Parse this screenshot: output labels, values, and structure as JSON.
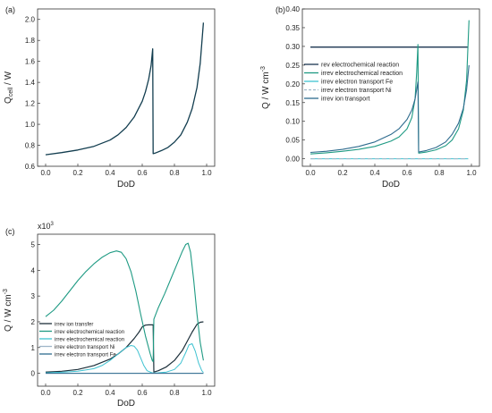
{
  "chart_data": [
    {
      "type": "line",
      "panel_label": "(a)",
      "xlabel": "DoD",
      "ylabel": "Q_cell / W",
      "ylabel_main": "Q",
      "ylabel_sub": "cell",
      "ylabel_unit": " / W",
      "xlim": [
        -0.05,
        1.05
      ],
      "ylim": [
        0.6,
        2.1
      ],
      "xticks": [
        "0.0",
        "0.2",
        "0.4",
        "0.6",
        "0.8",
        "1.0"
      ],
      "xtick_values": [
        0,
        0.2,
        0.4,
        0.6,
        0.8,
        1.0
      ],
      "yticks": [
        "0.6",
        "0.8",
        "1.0",
        "1.2",
        "1.4",
        "1.6",
        "1.8",
        "2.0"
      ],
      "ytick_values": [
        0.6,
        0.8,
        1.0,
        1.2,
        1.4,
        1.6,
        1.8,
        2.0
      ],
      "series": [
        {
          "color": "#123d4f",
          "width": 1.3,
          "x": [
            0,
            0.1,
            0.2,
            0.3,
            0.4,
            0.45,
            0.5,
            0.55,
            0.6,
            0.62,
            0.64,
            0.655,
            0.665,
            0.668,
            0.68,
            0.72,
            0.76,
            0.8,
            0.84,
            0.88,
            0.91,
            0.94,
            0.96,
            0.98
          ],
          "y": [
            0.71,
            0.73,
            0.755,
            0.79,
            0.85,
            0.9,
            0.97,
            1.07,
            1.22,
            1.31,
            1.43,
            1.56,
            1.72,
            0.72,
            0.725,
            0.75,
            0.78,
            0.83,
            0.9,
            1.02,
            1.15,
            1.35,
            1.58,
            1.97
          ]
        }
      ]
    },
    {
      "type": "line",
      "panel_label": "(b)",
      "xlabel": "DoD",
      "ylabel": "Q / W cm⁻³",
      "ylabel_main": "Q / W cm",
      "ylabel_sup": "-3",
      "xlim": [
        -0.05,
        1.05
      ],
      "ylim": [
        -0.02,
        0.4
      ],
      "xticks": [
        "0.0",
        "0.2",
        "0.4",
        "0.6",
        "0.8",
        "1.0"
      ],
      "xtick_values": [
        0,
        0.2,
        0.4,
        0.6,
        0.8,
        1.0
      ],
      "yticks": [
        "0.00",
        "0.05",
        "0.10",
        "0.15",
        "0.20",
        "0.25",
        "0.30",
        "0.35",
        "0.40"
      ],
      "ytick_values": [
        0,
        0.05,
        0.1,
        0.15,
        0.2,
        0.25,
        0.3,
        0.35,
        0.4
      ],
      "legend": [
        "rev electrochemical reaction",
        "irrev electrochemical reaction",
        "irrev electron transport Fe",
        "irrev electron transport Ni",
        "irrev ion transport"
      ],
      "series": [
        {
          "name": "rev electrochemical reaction",
          "color": "#1b3550",
          "width": 1.3,
          "x": [
            0,
            0.98
          ],
          "y": [
            0.298,
            0.298
          ]
        },
        {
          "name": "irrev electrochemical reaction",
          "color": "#1e9a83",
          "width": 1.1,
          "x": [
            0,
            0.1,
            0.2,
            0.3,
            0.4,
            0.5,
            0.55,
            0.6,
            0.63,
            0.65,
            0.66,
            0.668,
            0.672,
            0.72,
            0.78,
            0.84,
            0.88,
            0.92,
            0.95,
            0.97,
            0.985
          ],
          "y": [
            0.013,
            0.016,
            0.02,
            0.025,
            0.033,
            0.047,
            0.058,
            0.08,
            0.11,
            0.16,
            0.23,
            0.305,
            0.015,
            0.018,
            0.024,
            0.035,
            0.05,
            0.08,
            0.13,
            0.21,
            0.37
          ]
        },
        {
          "name": "irrev electron transport Fe",
          "color": "#3fc2d1",
          "width": 1.0,
          "x": [
            0,
            0.98
          ],
          "y": [
            0.0,
            0.0
          ]
        },
        {
          "name": "irrev electron transport Ni",
          "color": "#9fb6c8",
          "width": 1.0,
          "dash": "5,3",
          "x": [
            0,
            0.98
          ],
          "y": [
            0.0,
            0.0
          ]
        },
        {
          "name": "irrev ion transport",
          "color": "#2e6b8e",
          "width": 1.1,
          "x": [
            0,
            0.1,
            0.2,
            0.3,
            0.4,
            0.5,
            0.55,
            0.6,
            0.63,
            0.65,
            0.66,
            0.668,
            0.672,
            0.72,
            0.78,
            0.84,
            0.88,
            0.92,
            0.95,
            0.97,
            0.985
          ],
          "y": [
            0.017,
            0.02,
            0.025,
            0.033,
            0.045,
            0.065,
            0.08,
            0.105,
            0.13,
            0.16,
            0.185,
            0.205,
            0.018,
            0.022,
            0.03,
            0.045,
            0.065,
            0.095,
            0.135,
            0.185,
            0.25
          ]
        }
      ]
    },
    {
      "type": "line",
      "panel_label": "(c)",
      "xlabel": "DoD",
      "ylabel": "Q / W cm⁻³",
      "ylabel_main": "Q / W cm",
      "ylabel_sup": "-3",
      "scale_label": "x10",
      "scale_sup": "3",
      "xlim": [
        -0.05,
        1.05
      ],
      "ylim": [
        -0.5,
        5.4
      ],
      "xticks": [
        "0.0",
        "0.2",
        "0.4",
        "0.6",
        "0.8",
        "1.0"
      ],
      "xtick_values": [
        0,
        0.2,
        0.4,
        0.6,
        0.8,
        1.0
      ],
      "yticks": [
        "0",
        "1",
        "2",
        "3",
        "4",
        "5"
      ],
      "ytick_values": [
        0,
        1,
        2,
        3,
        4,
        5
      ],
      "legend": [
        "irrev ion transfer",
        "irrev electrochemical reaction",
        "irrev electrochemical reaction",
        "irrev electron transport Ni",
        "irrev electron transport Fe"
      ],
      "series": [
        {
          "name": "irrev ion transfer",
          "color": "#1c2f3a",
          "width": 1.2,
          "x": [
            0,
            0.1,
            0.2,
            0.3,
            0.4,
            0.45,
            0.5,
            0.55,
            0.58,
            0.6,
            0.62,
            0.64,
            0.66,
            0.668,
            0.672,
            0.7,
            0.75,
            0.8,
            0.85,
            0.88,
            0.91,
            0.94,
            0.96,
            0.98
          ],
          "y": [
            0.05,
            0.08,
            0.15,
            0.3,
            0.55,
            0.75,
            1.0,
            1.35,
            1.6,
            1.8,
            1.87,
            1.88,
            1.88,
            1.88,
            0.05,
            0.1,
            0.25,
            0.5,
            0.9,
            1.25,
            1.6,
            1.9,
            1.98,
            2.0
          ]
        },
        {
          "name": "irrev electrochemical reaction",
          "color": "#1e9a83",
          "width": 1.1,
          "x": [
            0,
            0.05,
            0.1,
            0.15,
            0.2,
            0.25,
            0.3,
            0.35,
            0.4,
            0.44,
            0.47,
            0.5,
            0.53,
            0.56,
            0.59,
            0.62,
            0.65,
            0.662,
            0.668,
            0.672,
            0.7,
            0.74,
            0.78,
            0.82,
            0.85,
            0.87,
            0.885,
            0.9,
            0.92,
            0.94,
            0.96,
            0.98
          ],
          "y": [
            2.2,
            2.45,
            2.8,
            3.2,
            3.6,
            3.95,
            4.25,
            4.5,
            4.68,
            4.75,
            4.7,
            4.45,
            3.95,
            3.2,
            2.3,
            1.45,
            0.75,
            0.5,
            0.45,
            2.1,
            2.55,
            3.1,
            3.7,
            4.3,
            4.75,
            5.0,
            5.05,
            4.7,
            3.6,
            2.3,
            1.2,
            0.5
          ]
        },
        {
          "name": "irrev electrochemical reaction",
          "color": "#3fc2d1",
          "width": 1.0,
          "x": [
            0,
            0.1,
            0.2,
            0.3,
            0.35,
            0.4,
            0.45,
            0.5,
            0.53,
            0.55,
            0.57,
            0.59,
            0.61,
            0.63,
            0.66,
            0.672,
            0.7,
            0.75,
            0.8,
            0.84,
            0.87,
            0.89,
            0.91,
            0.93,
            0.95,
            0.97,
            0.98
          ],
          "y": [
            0.02,
            0.04,
            0.08,
            0.18,
            0.3,
            0.5,
            0.75,
            1.0,
            1.08,
            1.05,
            0.9,
            0.6,
            0.3,
            0.1,
            0.02,
            0.01,
            0.02,
            0.05,
            0.15,
            0.4,
            0.8,
            1.1,
            1.15,
            0.85,
            0.4,
            0.1,
            0.03
          ]
        },
        {
          "name": "irrev electron transport Ni",
          "color": "#9fb6c8",
          "width": 1.0,
          "x": [
            0,
            0.98
          ],
          "y": [
            0.0,
            0.0
          ]
        },
        {
          "name": "irrev electron transport Fe",
          "color": "#2e6b8e",
          "width": 1.0,
          "x": [
            0,
            0.98
          ],
          "y": [
            0.0,
            0.0
          ]
        }
      ]
    }
  ]
}
